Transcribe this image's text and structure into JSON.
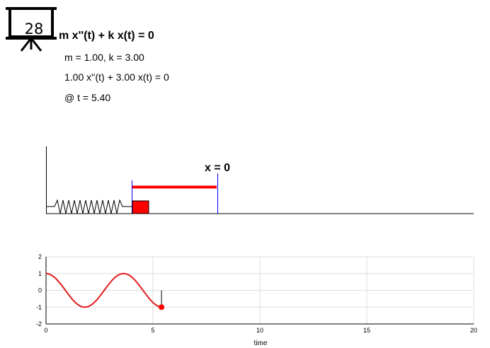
{
  "badge": {
    "number": "28",
    "icon": "presentation-board-icon"
  },
  "header": {
    "title": "m x''(t) + k x(t) = 0",
    "params": "m = 1.00, k = 3.00",
    "equation": "1.00 x''(t) + 3.00 x(t) = 0",
    "time": "@ t = 5.40"
  },
  "animation": {
    "equilibrium_label": "x = 0",
    "equilibrium_x": 0,
    "current_x": -1.0,
    "colors": {
      "mass": "#ff0000",
      "displacement_bar": "#ff0000",
      "marker_lines": "#0000ff",
      "spring": "#000000"
    }
  },
  "chart_data": {
    "type": "line",
    "title": "",
    "xlabel": "time",
    "ylabel": "",
    "xlim": [
      0,
      20
    ],
    "ylim": [
      -2,
      2
    ],
    "xticks": [
      "0",
      "5",
      "10",
      "15",
      "20"
    ],
    "yticks": [
      "2",
      "1",
      "0",
      "-1",
      "-2"
    ],
    "grid": true,
    "series": [
      {
        "color": "#e41a1c",
        "x": [
          0,
          0.25,
          0.5,
          0.75,
          1.0,
          1.25,
          1.5,
          1.75,
          2.0,
          2.25,
          2.5,
          2.75,
          3.0,
          3.25,
          3.5,
          3.75,
          4.0,
          4.25,
          4.5,
          4.75,
          5.0,
          5.25,
          5.4
        ],
        "values": [
          1.0,
          0.91,
          0.65,
          0.28,
          -0.16,
          -0.57,
          -0.87,
          -1.0,
          -0.95,
          -0.71,
          -0.37,
          0.05,
          0.47,
          0.81,
          0.98,
          0.97,
          0.79,
          0.45,
          0.03,
          -0.41,
          -0.76,
          -0.96,
          -1.0
        ]
      }
    ],
    "current_point": {
      "x": 5.4,
      "y": -1.0
    }
  }
}
